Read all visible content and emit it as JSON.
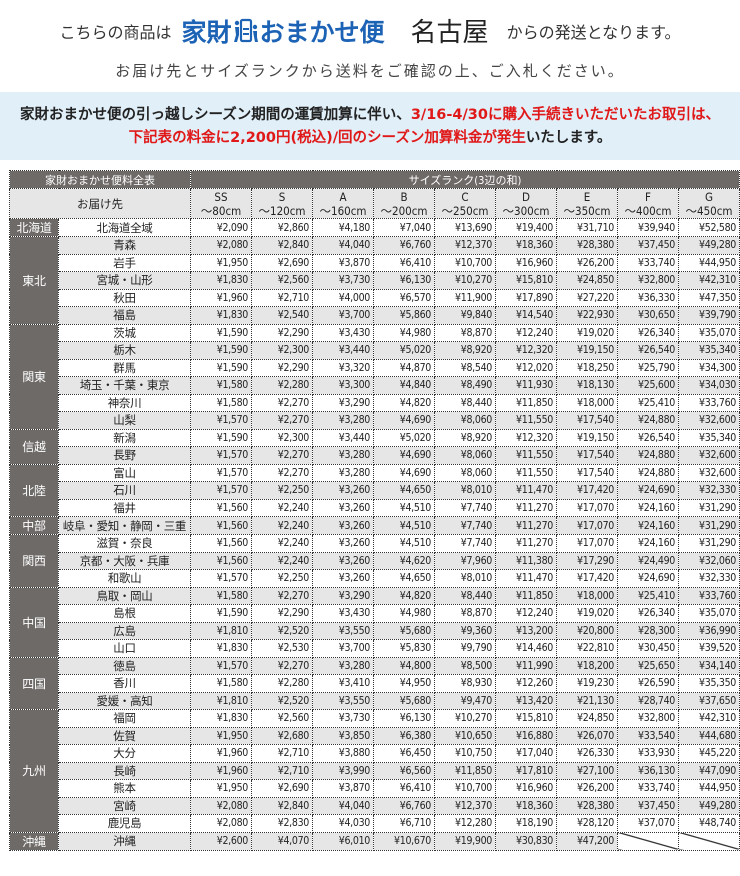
{
  "header": {
    "prefix": "こちらの商品は",
    "logo_text_a": "家財",
    "logo_text_b": "おまかせ便",
    "city": "名古屋",
    "suffix": "からの発送となります。",
    "subline": "お届け先とサイズランクから送料をご確認の上、ご入札ください。"
  },
  "notice": {
    "part1": "家財おまかせ便の引っ越しシーズン期間の運賃加算に伴い、",
    "part2_red": "3/16-4/30に購入手続きいただいたお取引は、",
    "part3_red": "下記表の料金に2,200円(税込)/回のシーズン加算料金が発生",
    "part4": "いたします。",
    "accent": "#e01818",
    "background": "#e1eff9"
  },
  "table": {
    "title": "家財おまかせ便料全表",
    "size_rank_label": "サイズランク(3辺の和)",
    "dest_label": "お届け先",
    "columns": [
      {
        "rank": "SS",
        "size": "～80cm"
      },
      {
        "rank": "S",
        "size": "～120cm"
      },
      {
        "rank": "A",
        "size": "～160cm"
      },
      {
        "rank": "B",
        "size": "～200cm"
      },
      {
        "rank": "C",
        "size": "～250cm"
      },
      {
        "rank": "D",
        "size": "～300cm"
      },
      {
        "rank": "E",
        "size": "～350cm"
      },
      {
        "rank": "F",
        "size": "～400cm"
      },
      {
        "rank": "G",
        "size": "～450cm"
      }
    ],
    "rows": [
      {
        "region": "北海道",
        "dest": "北海道全域",
        "prices": [
          "¥2,090",
          "¥2,860",
          "¥4,180",
          "¥7,040",
          "¥13,690",
          "¥19,400",
          "¥31,710",
          "¥39,940",
          "¥52,580"
        ]
      },
      {
        "region": "東北",
        "dest": "青森",
        "prices": [
          "¥2,080",
          "¥2,840",
          "¥4,040",
          "¥6,760",
          "¥12,370",
          "¥18,360",
          "¥28,380",
          "¥37,450",
          "¥49,280"
        ]
      },
      {
        "region": "東北",
        "dest": "岩手",
        "prices": [
          "¥1,950",
          "¥2,690",
          "¥3,870",
          "¥6,410",
          "¥10,700",
          "¥16,960",
          "¥26,200",
          "¥33,740",
          "¥44,950"
        ]
      },
      {
        "region": "東北",
        "dest": "宮城・山形",
        "prices": [
          "¥1,830",
          "¥2,560",
          "¥3,730",
          "¥6,130",
          "¥10,270",
          "¥15,810",
          "¥24,850",
          "¥32,800",
          "¥42,310"
        ]
      },
      {
        "region": "東北",
        "dest": "秋田",
        "prices": [
          "¥1,960",
          "¥2,710",
          "¥4,000",
          "¥6,570",
          "¥11,900",
          "¥17,890",
          "¥27,220",
          "¥36,330",
          "¥47,350"
        ]
      },
      {
        "region": "東北",
        "dest": "福島",
        "prices": [
          "¥1,830",
          "¥2,540",
          "¥3,700",
          "¥5,860",
          "¥9,840",
          "¥14,540",
          "¥22,930",
          "¥30,650",
          "¥39,790"
        ]
      },
      {
        "region": "関東",
        "dest": "茨城",
        "prices": [
          "¥1,590",
          "¥2,290",
          "¥3,430",
          "¥4,980",
          "¥8,870",
          "¥12,240",
          "¥19,020",
          "¥26,340",
          "¥35,070"
        ]
      },
      {
        "region": "関東",
        "dest": "栃木",
        "prices": [
          "¥1,590",
          "¥2,300",
          "¥3,440",
          "¥5,020",
          "¥8,920",
          "¥12,320",
          "¥19,150",
          "¥26,540",
          "¥35,340"
        ]
      },
      {
        "region": "関東",
        "dest": "群馬",
        "prices": [
          "¥1,590",
          "¥2,290",
          "¥3,320",
          "¥4,870",
          "¥8,540",
          "¥12,020",
          "¥18,250",
          "¥25,790",
          "¥34,300"
        ]
      },
      {
        "region": "関東",
        "dest": "埼玉・千葉・東京",
        "prices": [
          "¥1,580",
          "¥2,280",
          "¥3,300",
          "¥4,840",
          "¥8,490",
          "¥11,930",
          "¥18,130",
          "¥25,600",
          "¥34,030"
        ]
      },
      {
        "region": "関東",
        "dest": "神奈川",
        "prices": [
          "¥1,580",
          "¥2,270",
          "¥3,290",
          "¥4,820",
          "¥8,440",
          "¥11,850",
          "¥18,000",
          "¥25,410",
          "¥33,760"
        ]
      },
      {
        "region": "関東",
        "dest": "山梨",
        "prices": [
          "¥1,570",
          "¥2,270",
          "¥3,280",
          "¥4,690",
          "¥8,060",
          "¥11,550",
          "¥17,540",
          "¥24,880",
          "¥32,600"
        ]
      },
      {
        "region": "信越",
        "dest": "新潟",
        "prices": [
          "¥1,590",
          "¥2,300",
          "¥3,440",
          "¥5,020",
          "¥8,920",
          "¥12,320",
          "¥19,150",
          "¥26,540",
          "¥35,340"
        ]
      },
      {
        "region": "信越",
        "dest": "長野",
        "prices": [
          "¥1,570",
          "¥2,270",
          "¥3,280",
          "¥4,690",
          "¥8,060",
          "¥11,550",
          "¥17,540",
          "¥24,880",
          "¥32,600"
        ]
      },
      {
        "region": "北陸",
        "dest": "富山",
        "prices": [
          "¥1,570",
          "¥2,270",
          "¥3,280",
          "¥4,690",
          "¥8,060",
          "¥11,550",
          "¥17,540",
          "¥24,880",
          "¥32,600"
        ]
      },
      {
        "region": "北陸",
        "dest": "石川",
        "prices": [
          "¥1,570",
          "¥2,250",
          "¥3,260",
          "¥4,650",
          "¥8,010",
          "¥11,470",
          "¥17,420",
          "¥24,690",
          "¥32,330"
        ]
      },
      {
        "region": "北陸",
        "dest": "福井",
        "prices": [
          "¥1,560",
          "¥2,240",
          "¥3,260",
          "¥4,510",
          "¥7,740",
          "¥11,270",
          "¥17,070",
          "¥24,160",
          "¥31,290"
        ]
      },
      {
        "region": "中部",
        "dest": "岐阜・愛知・静岡・三重",
        "prices": [
          "¥1,560",
          "¥2,240",
          "¥3,260",
          "¥4,510",
          "¥7,740",
          "¥11,270",
          "¥17,070",
          "¥24,160",
          "¥31,290"
        ]
      },
      {
        "region": "関西",
        "dest": "滋賀・奈良",
        "prices": [
          "¥1,560",
          "¥2,240",
          "¥3,260",
          "¥4,510",
          "¥7,740",
          "¥11,270",
          "¥17,070",
          "¥24,160",
          "¥31,290"
        ]
      },
      {
        "region": "関西",
        "dest": "京都・大阪・兵庫",
        "prices": [
          "¥1,560",
          "¥2,240",
          "¥3,260",
          "¥4,620",
          "¥7,960",
          "¥11,380",
          "¥17,290",
          "¥24,490",
          "¥32,060"
        ]
      },
      {
        "region": "関西",
        "dest": "和歌山",
        "prices": [
          "¥1,570",
          "¥2,250",
          "¥3,260",
          "¥4,650",
          "¥8,010",
          "¥11,470",
          "¥17,420",
          "¥24,690",
          "¥32,330"
        ]
      },
      {
        "region": "中国",
        "dest": "鳥取・岡山",
        "prices": [
          "¥1,580",
          "¥2,270",
          "¥3,290",
          "¥4,820",
          "¥8,440",
          "¥11,850",
          "¥18,000",
          "¥25,410",
          "¥33,760"
        ]
      },
      {
        "region": "中国",
        "dest": "島根",
        "prices": [
          "¥1,590",
          "¥2,290",
          "¥3,430",
          "¥4,980",
          "¥8,870",
          "¥12,240",
          "¥19,020",
          "¥26,340",
          "¥35,070"
        ]
      },
      {
        "region": "中国",
        "dest": "広島",
        "prices": [
          "¥1,810",
          "¥2,520",
          "¥3,550",
          "¥5,680",
          "¥9,360",
          "¥13,200",
          "¥20,800",
          "¥28,300",
          "¥36,990"
        ]
      },
      {
        "region": "中国",
        "dest": "山口",
        "prices": [
          "¥1,830",
          "¥2,530",
          "¥3,700",
          "¥5,830",
          "¥9,790",
          "¥14,460",
          "¥22,810",
          "¥30,450",
          "¥39,520"
        ]
      },
      {
        "region": "四国",
        "dest": "徳島",
        "prices": [
          "¥1,570",
          "¥2,270",
          "¥3,280",
          "¥4,800",
          "¥8,500",
          "¥11,990",
          "¥18,200",
          "¥25,650",
          "¥34,140"
        ]
      },
      {
        "region": "四国",
        "dest": "香川",
        "prices": [
          "¥1,580",
          "¥2,280",
          "¥3,410",
          "¥4,950",
          "¥8,930",
          "¥12,260",
          "¥19,230",
          "¥26,590",
          "¥35,350"
        ]
      },
      {
        "region": "四国",
        "dest": "愛媛・高知",
        "prices": [
          "¥1,810",
          "¥2,520",
          "¥3,550",
          "¥5,680",
          "¥9,470",
          "¥13,420",
          "¥21,130",
          "¥28,740",
          "¥37,650"
        ]
      },
      {
        "region": "九州",
        "dest": "福岡",
        "prices": [
          "¥1,830",
          "¥2,560",
          "¥3,730",
          "¥6,130",
          "¥10,270",
          "¥15,810",
          "¥24,850",
          "¥32,800",
          "¥42,310"
        ]
      },
      {
        "region": "九州",
        "dest": "佐賀",
        "prices": [
          "¥1,950",
          "¥2,680",
          "¥3,850",
          "¥6,380",
          "¥10,650",
          "¥16,880",
          "¥26,070",
          "¥33,540",
          "¥44,680"
        ]
      },
      {
        "region": "九州",
        "dest": "大分",
        "prices": [
          "¥1,960",
          "¥2,710",
          "¥3,880",
          "¥6,450",
          "¥10,750",
          "¥17,040",
          "¥26,330",
          "¥33,930",
          "¥45,220"
        ]
      },
      {
        "region": "九州",
        "dest": "長崎",
        "prices": [
          "¥1,960",
          "¥2,710",
          "¥3,990",
          "¥6,560",
          "¥11,850",
          "¥17,810",
          "¥27,100",
          "¥36,130",
          "¥47,090"
        ]
      },
      {
        "region": "九州",
        "dest": "熊本",
        "prices": [
          "¥1,950",
          "¥2,690",
          "¥3,870",
          "¥6,410",
          "¥10,700",
          "¥16,960",
          "¥26,200",
          "¥33,740",
          "¥44,950"
        ]
      },
      {
        "region": "九州",
        "dest": "宮崎",
        "prices": [
          "¥2,080",
          "¥2,840",
          "¥4,040",
          "¥6,760",
          "¥12,370",
          "¥18,360",
          "¥28,380",
          "¥37,450",
          "¥49,280"
        ]
      },
      {
        "region": "九州",
        "dest": "鹿児島",
        "prices": [
          "¥2,080",
          "¥2,830",
          "¥4,030",
          "¥6,710",
          "¥12,280",
          "¥18,190",
          "¥28,120",
          "¥37,070",
          "¥48,740"
        ]
      },
      {
        "region": "沖縄",
        "dest": "沖縄",
        "prices": [
          "¥2,600",
          "¥4,070",
          "¥6,010",
          "¥10,670",
          "¥19,900",
          "¥30,830",
          "¥47,200",
          null,
          null
        ]
      }
    ]
  }
}
